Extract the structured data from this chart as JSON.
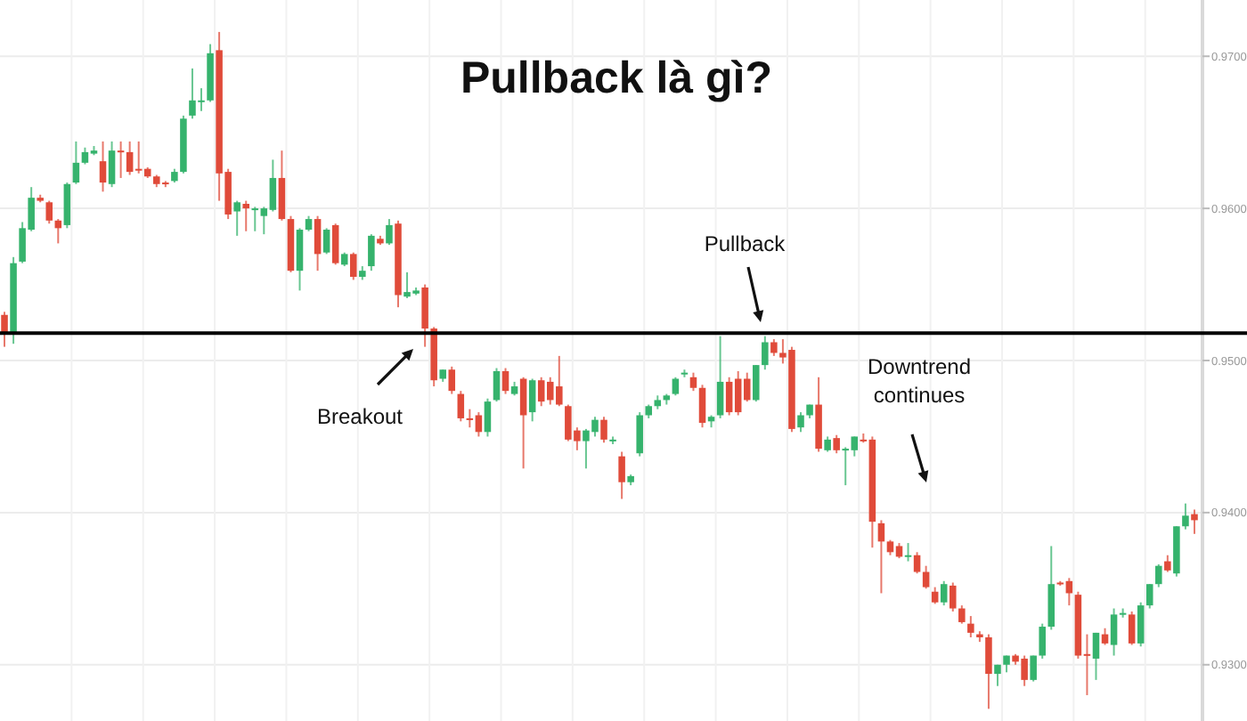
{
  "chart_data": {
    "type": "candlestick",
    "title": "Pullback là gì?",
    "annotations": [
      "Breakout",
      "Pullback",
      "Downtrend continues"
    ],
    "colors": [
      "#e04b3a",
      "#36b36d",
      "#36b36d",
      "#36b36d",
      "#e04b3a",
      "#e04b3a",
      "#e04b3a",
      "#36b36d",
      "#36b36d",
      "#36b36d",
      "#36b36d",
      "#e04b3a",
      "#36b36d",
      "#e04b3a",
      "#e04b3a",
      "#e04b3a",
      "#e04b3a",
      "#e04b3a",
      "#e04b3a",
      "#36b36d",
      "#36b36d",
      "#36b36d",
      "#36b36d",
      "#36b36d",
      "#e04b3a",
      "#e04b3a",
      "#36b36d",
      "#e04b3a",
      "#36b36d",
      "#36b36d",
      "#36b36d",
      "#e04b3a",
      "#e04b3a",
      "#36b36d",
      "#36b36d",
      "#e04b3a",
      "#36b36d",
      "#e04b3a",
      "#36b36d",
      "#e04b3a",
      "#36b36d",
      "#36b36d",
      "#e04b3a",
      "#36b36d",
      "#e04b3a",
      "#36b36d",
      "#36b36d",
      "#e04b3a",
      "#e04b3a",
      "#36b36d",
      "#e04b3a",
      "#e04b3a",
      "#e04b3a",
      "#e04b3a",
      "#36b36d",
      "#36b36d",
      "#e04b3a",
      "#36b36d",
      "#e04b3a",
      "#36b36d",
      "#e04b3a",
      "#e04b3a",
      "#e04b3a",
      "#e04b3a",
      "#e04b3a",
      "#36b36d",
      "#36b36d",
      "#e04b3a",
      "#36b36d",
      "#e04b3a",
      "#36b36d",
      "#36b36d",
      "#36b36d",
      "#36b36d",
      "#36b36d",
      "#36b36d",
      "#36b36d",
      "#e04b3a",
      "#e04b3a",
      "#36b36d",
      "#36b36d",
      "#e04b3a",
      "#e04b3a",
      "#e04b3a",
      "#36b36d",
      "#36b36d",
      "#e04b3a",
      "#e04b3a",
      "#e04b3a",
      "#36b36d",
      "#36b36d",
      "#e04b3a",
      "#36b36d",
      "#e04b3a",
      "#36b36d",
      "#36b36d",
      "#e04b3a",
      "#e04b3a",
      "#e04b3a",
      "#e04b3a",
      "#e04b3a",
      "#36b36d",
      "#e04b3a",
      "#e04b3a",
      "#e04b3a",
      "#36b36d",
      "#e04b3a",
      "#e04b3a",
      "#e04b3a",
      "#e04b3a",
      "#e04b3a",
      "#36b36d",
      "#36b36d",
      "#e04b3a",
      "#e04b3a",
      "#36b36d",
      "#36b36d",
      "#36b36d",
      "#e04b3a",
      "#e04b3a",
      "#e04b3a",
      "#e04b3a",
      "#36b36d",
      "#e04b3a",
      "#36b36d",
      "#36b36d",
      "#e04b3a",
      "#36b36d",
      "#36b36d",
      "#36b36d",
      "#e04b3a",
      "#36b36d",
      "#36b36d",
      "#e04b3a"
    ],
    "ylim": [
      0.9263,
      0.9737
    ],
    "yticks": [
      {
        "value": 0.93,
        "label": "0.9300"
      },
      {
        "value": 0.94,
        "label": "0.9400"
      },
      {
        "value": 0.95,
        "label": "0.9500"
      },
      {
        "value": 0.96,
        "label": "0.9600"
      },
      {
        "value": 0.97,
        "label": "0.9700"
      }
    ],
    "grid": true,
    "ref_lines": [
      {
        "axis": "y",
        "value": 0.9518,
        "label": null,
        "color": "#000000"
      }
    ],
    "categories": [
      null,
      null,
      null,
      null,
      null,
      null,
      null,
      null,
      null,
      null,
      null,
      null,
      null,
      null,
      null,
      null,
      null,
      null,
      null,
      null,
      null,
      null,
      null,
      null,
      null,
      null,
      null,
      null,
      null,
      null,
      null,
      null,
      null,
      null,
      null,
      null,
      null,
      null,
      null,
      null,
      null,
      null,
      null,
      null,
      null,
      null,
      null,
      null,
      null,
      null,
      null,
      null,
      null,
      null,
      null,
      null,
      null,
      null,
      null,
      null,
      null,
      null,
      null,
      null,
      null,
      null,
      null,
      null,
      null,
      null,
      null,
      null,
      null,
      null,
      null,
      null,
      null,
      null,
      null,
      null,
      null,
      null,
      null,
      null,
      null,
      null,
      null,
      null,
      null,
      null,
      null,
      null,
      null,
      null,
      null,
      null,
      null,
      null,
      null,
      null,
      null,
      null,
      null,
      null,
      null,
      null,
      null,
      null,
      null,
      null,
      null,
      null,
      null,
      null,
      null,
      null,
      null,
      null,
      null,
      null,
      null,
      null,
      null,
      null,
      null,
      null,
      null,
      null,
      null,
      null,
      null,
      null,
      null,
      null
    ],
    "ohlc": [
      [
        0.953,
        0.9532,
        0.9509,
        0.9518
      ],
      [
        0.9518,
        0.9568,
        0.9511,
        0.9564
      ],
      [
        0.9565,
        0.9591,
        0.9564,
        0.9587
      ],
      [
        0.9586,
        0.9614,
        0.9585,
        0.9607
      ],
      [
        0.9607,
        0.9609,
        0.9604,
        0.9605
      ],
      [
        0.9604,
        0.9605,
        0.959,
        0.9592
      ],
      [
        0.9592,
        0.9593,
        0.9577,
        0.9587
      ],
      [
        0.9589,
        0.9617,
        0.9587,
        0.9616
      ],
      [
        0.9617,
        0.9644,
        0.9616,
        0.963
      ],
      [
        0.963,
        0.964,
        0.9629,
        0.9637
      ],
      [
        0.9636,
        0.9641,
        0.9635,
        0.9638
      ],
      [
        0.9631,
        0.9644,
        0.9611,
        0.9617
      ],
      [
        0.9616,
        0.9644,
        0.9614,
        0.9638
      ],
      [
        0.9638,
        0.9644,
        0.962,
        0.9637
      ],
      [
        0.9637,
        0.9644,
        0.9622,
        0.9624
      ],
      [
        0.9626,
        0.9644,
        0.9623,
        0.9625
      ],
      [
        0.9626,
        0.9627,
        0.962,
        0.9621
      ],
      [
        0.9621,
        0.9622,
        0.9614,
        0.9616
      ],
      [
        0.9617,
        0.9618,
        0.9614,
        0.9616
      ],
      [
        0.9618,
        0.9626,
        0.9617,
        0.9624
      ],
      [
        0.9624,
        0.9661,
        0.9623,
        0.9659
      ],
      [
        0.9661,
        0.9692,
        0.9659,
        0.9671
      ],
      [
        0.967,
        0.9679,
        0.9664,
        0.9671
      ],
      [
        0.9671,
        0.9708,
        0.967,
        0.9702
      ],
      [
        0.9704,
        0.9716,
        0.9605,
        0.9623
      ],
      [
        0.9624,
        0.9626,
        0.9593,
        0.9596
      ],
      [
        0.9598,
        0.9605,
        0.9582,
        0.9604
      ],
      [
        0.9603,
        0.9605,
        0.9585,
        0.96
      ],
      [
        0.9599,
        0.9601,
        0.9585,
        0.96
      ],
      [
        0.9595,
        0.9601,
        0.9583,
        0.96
      ],
      [
        0.9599,
        0.9632,
        0.9598,
        0.962
      ],
      [
        0.962,
        0.9638,
        0.9592,
        0.9593
      ],
      [
        0.9593,
        0.9595,
        0.9558,
        0.9559
      ],
      [
        0.9559,
        0.9587,
        0.9546,
        0.9586
      ],
      [
        0.9586,
        0.9595,
        0.9585,
        0.9593
      ],
      [
        0.9593,
        0.9595,
        0.9559,
        0.957
      ],
      [
        0.9571,
        0.9587,
        0.957,
        0.9586
      ],
      [
        0.9589,
        0.959,
        0.9563,
        0.9564
      ],
      [
        0.9563,
        0.9571,
        0.9562,
        0.957
      ],
      [
        0.957,
        0.9571,
        0.9553,
        0.9555
      ],
      [
        0.9555,
        0.9562,
        0.9553,
        0.9559
      ],
      [
        0.9562,
        0.9583,
        0.9559,
        0.9582
      ],
      [
        0.958,
        0.9582,
        0.9576,
        0.9577
      ],
      [
        0.9577,
        0.9593,
        0.9576,
        0.9589
      ],
      [
        0.959,
        0.9592,
        0.9535,
        0.9543
      ],
      [
        0.9542,
        0.9558,
        0.9541,
        0.9545
      ],
      [
        0.9544,
        0.9548,
        0.9543,
        0.9546
      ],
      [
        0.9548,
        0.955,
        0.9509,
        0.9521
      ],
      [
        0.9521,
        0.9522,
        0.9483,
        0.9487
      ],
      [
        0.9488,
        0.9494,
        0.9486,
        0.9494
      ],
      [
        0.9494,
        0.9496,
        0.9478,
        0.948
      ],
      [
        0.9478,
        0.948,
        0.946,
        0.9462
      ],
      [
        0.9462,
        0.9468,
        0.9456,
        0.9461
      ],
      [
        0.9464,
        0.9466,
        0.945,
        0.9453
      ],
      [
        0.9453,
        0.9475,
        0.945,
        0.9473
      ],
      [
        0.9474,
        0.9495,
        0.9473,
        0.9493
      ],
      [
        0.9493,
        0.9495,
        0.9478,
        0.948
      ],
      [
        0.9478,
        0.9486,
        0.9477,
        0.9483
      ],
      [
        0.9488,
        0.9489,
        0.9429,
        0.9464
      ],
      [
        0.9466,
        0.9488,
        0.946,
        0.9487
      ],
      [
        0.9487,
        0.9489,
        0.947,
        0.9473
      ],
      [
        0.9486,
        0.9489,
        0.9471,
        0.9474
      ],
      [
        0.9483,
        0.9503,
        0.947,
        0.9471
      ],
      [
        0.947,
        0.9471,
        0.9447,
        0.9448
      ],
      [
        0.9454,
        0.9456,
        0.9441,
        0.9447
      ],
      [
        0.9447,
        0.9455,
        0.9429,
        0.9454
      ],
      [
        0.9453,
        0.9463,
        0.945,
        0.9461
      ],
      [
        0.9461,
        0.9463,
        0.9446,
        0.9448
      ],
      [
        0.9447,
        0.945,
        0.9445,
        0.9448
      ],
      [
        0.9437,
        0.944,
        0.9409,
        0.942
      ],
      [
        0.942,
        0.9425,
        0.9418,
        0.9424
      ],
      [
        0.9439,
        0.9466,
        0.9437,
        0.9464
      ],
      [
        0.9464,
        0.9471,
        0.9462,
        0.947
      ],
      [
        0.947,
        0.9477,
        0.9468,
        0.9474
      ],
      [
        0.9474,
        0.9478,
        0.9471,
        0.9477
      ],
      [
        0.9478,
        0.9489,
        0.9477,
        0.9488
      ],
      [
        0.9491,
        0.9494,
        0.9489,
        0.9492
      ],
      [
        0.9489,
        0.9492,
        0.948,
        0.9482
      ],
      [
        0.9482,
        0.9484,
        0.9456,
        0.9459
      ],
      [
        0.946,
        0.9464,
        0.9456,
        0.9463
      ],
      [
        0.9464,
        0.9516,
        0.9462,
        0.9486
      ],
      [
        0.9486,
        0.9489,
        0.9464,
        0.9466
      ],
      [
        0.9488,
        0.9493,
        0.9464,
        0.9466
      ],
      [
        0.9488,
        0.9492,
        0.9473,
        0.9474
      ],
      [
        0.9474,
        0.9497,
        0.9473,
        0.9497
      ],
      [
        0.9497,
        0.9516,
        0.9494,
        0.9512
      ],
      [
        0.9512,
        0.9514,
        0.9503,
        0.9505
      ],
      [
        0.9505,
        0.9514,
        0.9498,
        0.9502
      ],
      [
        0.9507,
        0.9509,
        0.9453,
        0.9455
      ],
      [
        0.9456,
        0.9466,
        0.9453,
        0.9464
      ],
      [
        0.9464,
        0.9471,
        0.9462,
        0.9471
      ],
      [
        0.9471,
        0.9489,
        0.944,
        0.9442
      ],
      [
        0.9441,
        0.945,
        0.944,
        0.9448
      ],
      [
        0.9449,
        0.9451,
        0.9439,
        0.9441
      ],
      [
        0.9441,
        0.9443,
        0.9418,
        0.9442
      ],
      [
        0.9441,
        0.945,
        0.9437,
        0.945
      ],
      [
        0.9448,
        0.9452,
        0.9446,
        0.9447
      ],
      [
        0.9448,
        0.945,
        0.9377,
        0.9394
      ],
      [
        0.9393,
        0.9395,
        0.9347,
        0.9381
      ],
      [
        0.9381,
        0.9382,
        0.9372,
        0.9374
      ],
      [
        0.9378,
        0.938,
        0.937,
        0.9371
      ],
      [
        0.9371,
        0.938,
        0.9368,
        0.9372
      ],
      [
        0.9372,
        0.9374,
        0.936,
        0.9361
      ],
      [
        0.9361,
        0.9365,
        0.935,
        0.9351
      ],
      [
        0.9348,
        0.9351,
        0.934,
        0.9341
      ],
      [
        0.9341,
        0.9355,
        0.9339,
        0.9353
      ],
      [
        0.9352,
        0.9354,
        0.9335,
        0.9337
      ],
      [
        0.9337,
        0.9339,
        0.9327,
        0.9328
      ],
      [
        0.9327,
        0.9332,
        0.9318,
        0.9321
      ],
      [
        0.932,
        0.9322,
        0.9315,
        0.9318
      ],
      [
        0.9318,
        0.932,
        0.9271,
        0.9294
      ],
      [
        0.9294,
        0.93,
        0.9286,
        0.93
      ],
      [
        0.93,
        0.9306,
        0.9295,
        0.9306
      ],
      [
        0.9306,
        0.9307,
        0.93,
        0.9302
      ],
      [
        0.9304,
        0.9306,
        0.9286,
        0.929
      ],
      [
        0.929,
        0.9306,
        0.9289,
        0.9306
      ],
      [
        0.9306,
        0.9327,
        0.9304,
        0.9325
      ],
      [
        0.9325,
        0.9378,
        0.9323,
        0.9353
      ],
      [
        0.9354,
        0.9355,
        0.9352,
        0.9353
      ],
      [
        0.9355,
        0.9357,
        0.9339,
        0.9347
      ],
      [
        0.9346,
        0.9348,
        0.9304,
        0.9306
      ],
      [
        0.9307,
        0.932,
        0.928,
        0.9306
      ],
      [
        0.9304,
        0.9321,
        0.929,
        0.9321
      ],
      [
        0.932,
        0.9324,
        0.9313,
        0.9314
      ],
      [
        0.9313,
        0.9337,
        0.9306,
        0.9333
      ],
      [
        0.9333,
        0.9337,
        0.9331,
        0.9334
      ],
      [
        0.9333,
        0.9335,
        0.9313,
        0.9314
      ],
      [
        0.9314,
        0.9341,
        0.9312,
        0.9339
      ],
      [
        0.9339,
        0.9353,
        0.9337,
        0.9353
      ],
      [
        0.9353,
        0.9366,
        0.9351,
        0.9365
      ],
      [
        0.9368,
        0.9372,
        0.9361,
        0.9362
      ],
      [
        0.936,
        0.9391,
        0.9358,
        0.9391
      ],
      [
        0.9391,
        0.9406,
        0.9389,
        0.9398
      ],
      [
        0.9399,
        0.9402,
        0.9386,
        0.9395
      ]
    ]
  }
}
